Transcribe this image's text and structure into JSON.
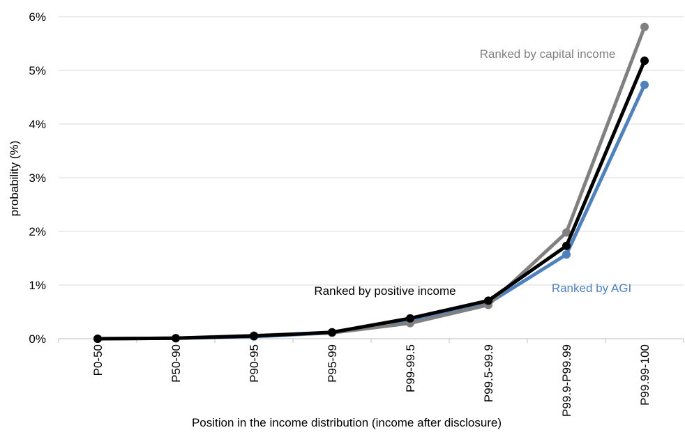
{
  "chart_data": {
    "type": "line",
    "title": "",
    "xlabel": "Position in the income distribution (income after disclosure)",
    "ylabel": "probability (%)",
    "categories": [
      "P0-50",
      "P50-90",
      "P90-95",
      "P95-99",
      "P99-99.5",
      "P99.5-99.9",
      "P99.9-P99.99",
      "P99.99-100"
    ],
    "ylim": [
      0,
      6
    ],
    "yticks": [
      0,
      1,
      2,
      3,
      4,
      5,
      6
    ],
    "ytick_labels": [
      "0%",
      "1%",
      "2%",
      "3%",
      "4%",
      "5%",
      "6%"
    ],
    "grid": true,
    "series": [
      {
        "name": "Ranked by AGI",
        "color": "#4f81bd",
        "values": [
          0.0,
          0.01,
          0.04,
          0.11,
          0.33,
          0.66,
          1.57,
          4.73
        ]
      },
      {
        "name": "Ranked by capital income",
        "color": "#808080",
        "values": [
          0.0,
          0.01,
          0.06,
          0.11,
          0.29,
          0.63,
          1.98,
          5.81
        ]
      },
      {
        "name": "Ranked by positive income",
        "color": "#000000",
        "values": [
          0.0,
          0.01,
          0.05,
          0.12,
          0.38,
          0.71,
          1.73,
          5.18
        ]
      }
    ]
  }
}
